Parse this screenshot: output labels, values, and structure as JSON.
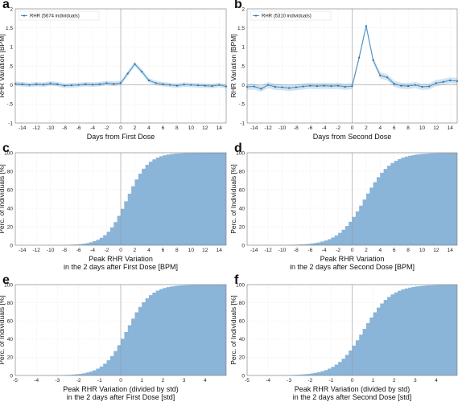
{
  "colors": {
    "line": "#4a90c2",
    "band": "#c6dcef",
    "bar": "#8ab4d8",
    "grid": "#e6e6e6",
    "zero_line": "#9a9a9a",
    "frame": "#777777"
  },
  "chart_data": [
    {
      "id": "a",
      "type": "line",
      "panel_letter": "a",
      "xlabel": "Days from First Dose",
      "ylabel": "RHR Variation [BPM]",
      "xlim": [
        -15,
        15
      ],
      "ylim": [
        -1,
        2
      ],
      "xticks": [
        -14,
        -12,
        -10,
        -8,
        -6,
        -4,
        -2,
        0,
        2,
        4,
        6,
        8,
        10,
        12,
        14
      ],
      "yticks": [
        -1,
        -0.5,
        0,
        0.5,
        1,
        1.5,
        2
      ],
      "legend_position": "top-left",
      "grid": true,
      "series": [
        {
          "name": "RHR (5674 individuals)",
          "x": [
            -15,
            -14,
            -13,
            -12,
            -11,
            -10,
            -9,
            -8,
            -7,
            -6,
            -5,
            -4,
            -3,
            -2,
            -1,
            0,
            1,
            2,
            3,
            4,
            5,
            6,
            7,
            8,
            9,
            10,
            11,
            12,
            13,
            14,
            15
          ],
          "y": [
            0.03,
            0.02,
            0.0,
            0.02,
            0.01,
            0.04,
            0.02,
            -0.02,
            -0.01,
            0.0,
            0.02,
            0.01,
            0.02,
            0.05,
            0.03,
            0.05,
            0.3,
            0.55,
            0.35,
            0.12,
            0.05,
            0.02,
            0.0,
            -0.02,
            0.01,
            0.0,
            -0.01,
            -0.02,
            -0.03,
            0.0,
            -0.04
          ],
          "band": 0.06
        }
      ]
    },
    {
      "id": "b",
      "type": "line",
      "panel_letter": "b",
      "xlabel": "Days from Second Dose",
      "ylabel": "RHR Variation [BPM]",
      "xlim": [
        -15,
        15
      ],
      "ylim": [
        -1,
        2
      ],
      "xticks": [
        -14,
        -12,
        -10,
        -8,
        -6,
        -4,
        -2,
        0,
        2,
        4,
        6,
        8,
        10,
        12,
        14
      ],
      "yticks": [
        -1,
        -0.5,
        0,
        0.5,
        1,
        1.5,
        2
      ],
      "legend_position": "top-left",
      "grid": true,
      "series": [
        {
          "name": "RHR (5310 individuals)",
          "x": [
            -15,
            -14,
            -13,
            -12,
            -11,
            -10,
            -9,
            -8,
            -7,
            -6,
            -5,
            -4,
            -3,
            -2,
            -1,
            0,
            1,
            2,
            3,
            4,
            5,
            6,
            7,
            8,
            9,
            10,
            11,
            12,
            13,
            14,
            15
          ],
          "y": [
            -0.05,
            -0.04,
            -0.1,
            0.0,
            -0.05,
            -0.06,
            -0.08,
            -0.06,
            -0.04,
            -0.02,
            -0.03,
            -0.02,
            -0.03,
            -0.02,
            -0.05,
            -0.03,
            0.72,
            1.55,
            0.65,
            0.25,
            0.2,
            0.03,
            -0.02,
            -0.03,
            0.0,
            -0.05,
            -0.04,
            0.05,
            0.08,
            0.12,
            0.1
          ],
          "band": 0.08
        }
      ]
    },
    {
      "id": "c",
      "type": "bar",
      "subtype": "cumulative-histogram",
      "panel_letter": "c",
      "xlabel": "Peak RHR Variation",
      "xlabel2": "in the 2 days after First Dose [BPM]",
      "ylabel": "Perc. of Individuals [%]",
      "xlim": [
        -15,
        15
      ],
      "ylim": [
        0,
        100
      ],
      "xticks": [
        -14,
        -12,
        -10,
        -8,
        -6,
        -4,
        -2,
        0,
        2,
        4,
        6,
        8,
        10,
        12,
        14
      ],
      "yticks": [
        0,
        20,
        40,
        60,
        80,
        100
      ],
      "grid": true,
      "cdf": {
        "distribution": "logistic",
        "center": 0.9,
        "scale": 1.5,
        "bin_width": 0.5
      }
    },
    {
      "id": "d",
      "type": "bar",
      "subtype": "cumulative-histogram",
      "panel_letter": "d",
      "xlabel": "Peak RHR Variation",
      "xlabel2": "in the 2 days after Second Dose [BPM]",
      "ylabel": "Perc. of Individuals [%]",
      "xlim": [
        -15,
        15
      ],
      "ylim": [
        0,
        100
      ],
      "xticks": [
        -14,
        -12,
        -10,
        -8,
        -6,
        -4,
        -2,
        0,
        2,
        4,
        6,
        8,
        10,
        12,
        14
      ],
      "yticks": [
        0,
        20,
        40,
        60,
        80,
        100
      ],
      "grid": true,
      "cdf": {
        "distribution": "logistic",
        "center": 1.8,
        "scale": 1.9,
        "bin_width": 0.5
      }
    },
    {
      "id": "e",
      "type": "bar",
      "subtype": "cumulative-histogram",
      "panel_letter": "e",
      "xlabel": "Peak RHR Variation (divided by std)",
      "xlabel2": "in the 2 days after First Dose [std]",
      "ylabel": "Perc. of Individuals [%]",
      "xlim": [
        -5,
        5
      ],
      "ylim": [
        0,
        100
      ],
      "xticks": [
        -5,
        -4,
        -3,
        -2,
        -1,
        0,
        1,
        2,
        3,
        4
      ],
      "yticks": [
        0,
        20,
        40,
        60,
        80,
        100
      ],
      "grid": true,
      "cdf": {
        "distribution": "logistic",
        "center": 0.3,
        "scale": 0.55,
        "bin_width": 0.1667
      }
    },
    {
      "id": "f",
      "type": "bar",
      "subtype": "cumulative-histogram",
      "panel_letter": "f",
      "xlabel": "Peak RHR Variation (divided by std)",
      "xlabel2": "in the 2 days after Second Dose [std]",
      "ylabel": "Perc. of Individuals [%]",
      "xlim": [
        -5,
        5
      ],
      "ylim": [
        0,
        100
      ],
      "xticks": [
        -5,
        -4,
        -3,
        -2,
        -1,
        0,
        1,
        2,
        3,
        4
      ],
      "yticks": [
        0,
        20,
        40,
        60,
        80,
        100
      ],
      "grid": true,
      "cdf": {
        "distribution": "logistic",
        "center": 0.55,
        "scale": 0.65,
        "bin_width": 0.1667
      }
    }
  ]
}
